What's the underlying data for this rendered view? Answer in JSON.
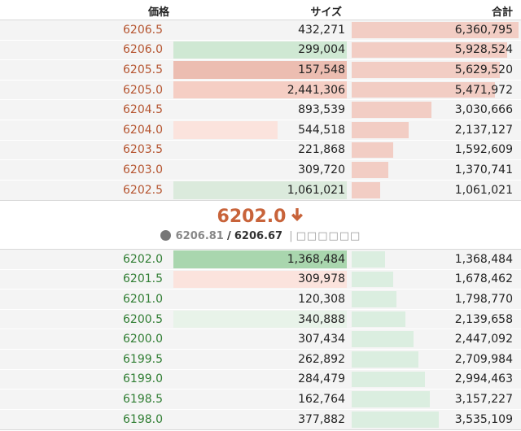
{
  "header": {
    "price": "価格",
    "size": "サイズ",
    "total": "合計"
  },
  "colors": {
    "ask_price": "#b5542f",
    "bid_price": "#2f7d32",
    "ask_total_bar": "#f2cdc4",
    "bid_total_bar": "#dbeee0",
    "arrow": "#c8633a"
  },
  "asks": [
    {
      "price": "6206.5",
      "size": "432,271",
      "total": "6,360,795",
      "total_fill": 1.0,
      "size_fill": 0,
      "size_color": ""
    },
    {
      "price": "6206.0",
      "size": "299,004",
      "total": "5,928,524",
      "total_fill": 0.93,
      "size_fill": 1.0,
      "size_color": "#cfe8d3"
    },
    {
      "price": "6205.5",
      "size": "157,548",
      "total": "5,629,520",
      "total_fill": 0.89,
      "size_fill": 1.0,
      "size_color": "#ecbdb1"
    },
    {
      "price": "6205.0",
      "size": "2,441,306",
      "total": "5,471,972",
      "total_fill": 0.86,
      "size_fill": 1.0,
      "size_color": "#f5cec4"
    },
    {
      "price": "6204.5",
      "size": "893,539",
      "total": "3,030,666",
      "total_fill": 0.48,
      "size_fill": 0,
      "size_color": ""
    },
    {
      "price": "6204.0",
      "size": "544,518",
      "total": "2,137,127",
      "total_fill": 0.34,
      "size_fill": 0.6,
      "size_color": "#fbe3dd"
    },
    {
      "price": "6203.5",
      "size": "221,868",
      "total": "1,592,609",
      "total_fill": 0.25,
      "size_fill": 0,
      "size_color": ""
    },
    {
      "price": "6203.0",
      "size": "309,720",
      "total": "1,370,741",
      "total_fill": 0.22,
      "size_fill": 0,
      "size_color": ""
    },
    {
      "price": "6202.5",
      "size": "1,061,021",
      "total": "1,061,021",
      "total_fill": 0.17,
      "size_fill": 1.0,
      "size_color": "#dbeadc"
    }
  ],
  "mid": {
    "last_price": "6202.0",
    "arrow_icon": "arrow-down-icon",
    "index_icon": "globe-icon",
    "mark_price": "6206.81",
    "separator": "/",
    "fair_price": "6206.67",
    "divider": "|",
    "placeholder": "□□□□□□"
  },
  "bids": [
    {
      "price": "6202.0",
      "size": "1,368,484",
      "total": "1,368,484",
      "total_fill": 0.2,
      "size_fill": 1.0,
      "size_color": "#a9d6ae"
    },
    {
      "price": "6201.5",
      "size": "309,978",
      "total": "1,678,462",
      "total_fill": 0.25,
      "size_fill": 1.0,
      "size_color": "#fbe3dd"
    },
    {
      "price": "6201.0",
      "size": "120,308",
      "total": "1,798,770",
      "total_fill": 0.27,
      "size_fill": 0,
      "size_color": ""
    },
    {
      "price": "6200.5",
      "size": "340,888",
      "total": "2,139,658",
      "total_fill": 0.32,
      "size_fill": 1.0,
      "size_color": "#e8f3e9"
    },
    {
      "price": "6200.0",
      "size": "307,434",
      "total": "2,447,092",
      "total_fill": 0.37,
      "size_fill": 0,
      "size_color": ""
    },
    {
      "price": "6199.5",
      "size": "262,892",
      "total": "2,709,984",
      "total_fill": 0.4,
      "size_fill": 0,
      "size_color": ""
    },
    {
      "price": "6199.0",
      "size": "284,479",
      "total": "2,994,463",
      "total_fill": 0.44,
      "size_fill": 0,
      "size_color": ""
    },
    {
      "price": "6198.5",
      "size": "162,764",
      "total": "3,157,227",
      "total_fill": 0.47,
      "size_fill": 0,
      "size_color": ""
    },
    {
      "price": "6198.0",
      "size": "377,882",
      "total": "3,535,109",
      "total_fill": 0.52,
      "size_fill": 0,
      "size_color": ""
    }
  ]
}
